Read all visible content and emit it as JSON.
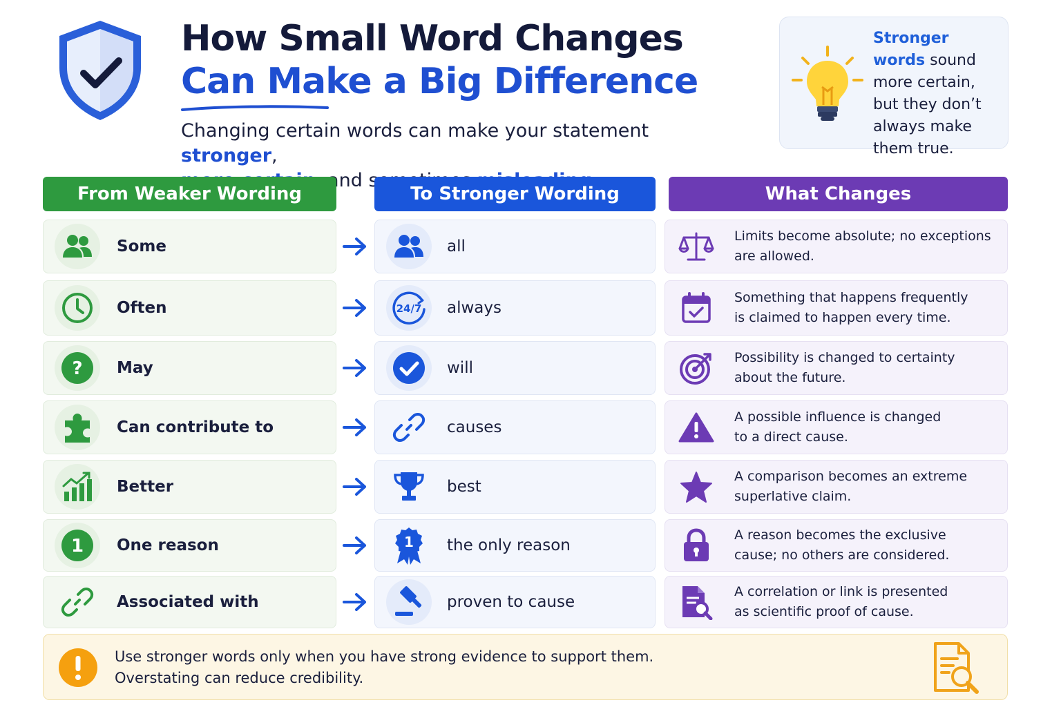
{
  "header": {
    "title_line1": "How Small Word Changes",
    "title_line2": "Can Make a Big Difference",
    "subtitle": {
      "part1": "Changing certain words can make your statement ",
      "hl1": "stronger",
      "part2": ",",
      "hl2": "more certain",
      "part3": ", and sometimes ",
      "hl3": "misleading",
      "part4": "."
    },
    "shield_icon": "shield-check-icon"
  },
  "tip": {
    "highlight": "Stronger words",
    "text": "sound more certain, but they don’t always make them true.",
    "icon": "lightbulb-icon"
  },
  "columns": {
    "weaker": "From Weaker Wording",
    "stronger": "To Stronger Wording",
    "changes": "What Changes"
  },
  "rows": [
    {
      "weak": "Some",
      "strong": "all",
      "change_line1": "Limits become absolute; no exceptions",
      "change_line2": "are allowed.",
      "weak_icon": "people-icon",
      "strong_icon": "people-icon",
      "change_icon": "scale-icon"
    },
    {
      "weak": "Often",
      "strong": "always",
      "change_line1": "Something that happens frequently",
      "change_line2": "is claimed to happen every time.",
      "weak_icon": "clock-icon",
      "strong_icon": "24-7-icon",
      "change_icon": "calendar-check-icon",
      "badge": "24/7"
    },
    {
      "weak": "May",
      "strong": "will",
      "change_line1": "Possibility is changed to certainty",
      "change_line2": "about the future.",
      "weak_icon": "question-icon",
      "strong_icon": "check-circle-icon",
      "change_icon": "target-icon"
    },
    {
      "weak": "Can contribute to",
      "strong": "causes",
      "change_line1": "A possible influence is changed",
      "change_line2": "to a direct cause.",
      "weak_icon": "puzzle-icon",
      "strong_icon": "link-icon",
      "change_icon": "warning-icon"
    },
    {
      "weak": "Better",
      "strong": "best",
      "change_line1": "A comparison becomes an extreme",
      "change_line2": "superlative claim.",
      "weak_icon": "growth-chart-icon",
      "strong_icon": "trophy-icon",
      "change_icon": "star-icon"
    },
    {
      "weak": "One reason",
      "strong": "the only reason",
      "change_line1": "A reason becomes the exclusive",
      "change_line2": "cause; no others are considered.",
      "weak_icon": "number-one-icon",
      "strong_icon": "ribbon-icon",
      "change_icon": "lock-icon",
      "badge": "1"
    },
    {
      "weak": "Associated with",
      "strong": "proven to cause",
      "change_line1": "A correlation or link is presented",
      "change_line2": "as scientific proof of cause.",
      "weak_icon": "link-icon",
      "strong_icon": "gavel-icon",
      "change_icon": "document-search-icon"
    }
  ],
  "footer": {
    "line1": "Use stronger words only when you have strong evidence to support them.",
    "line2": "Overstating can reduce credibility.",
    "icon": "warning-circle-icon",
    "right_icon": "document-search-icon"
  },
  "colors": {
    "green": "#2e9a3f",
    "blue": "#1a56db",
    "purple": "#6c3bb4",
    "accent": "#1f4fd1"
  }
}
